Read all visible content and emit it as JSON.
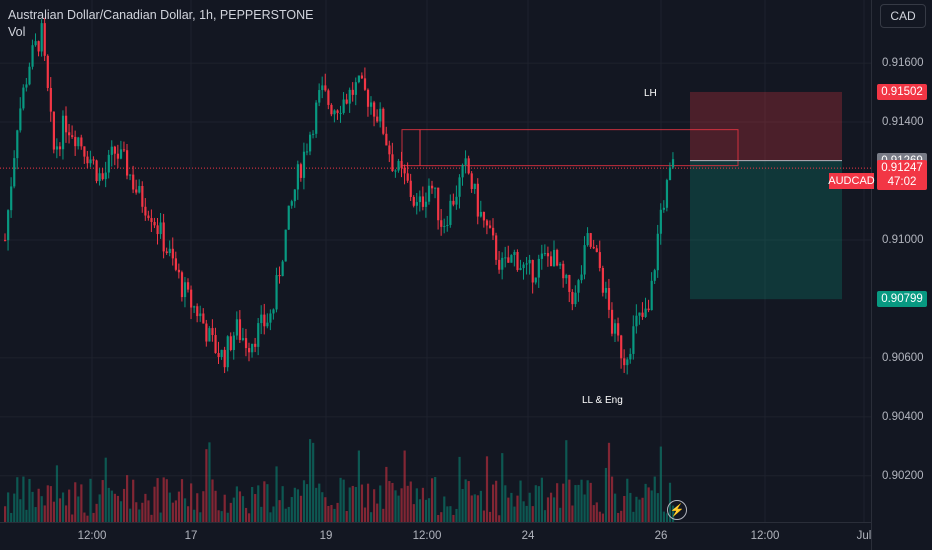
{
  "header": {
    "title": "Australian Dollar/Canadian Dollar, 1h, PEPPERSTONE",
    "volume_label": "Vol"
  },
  "currency_button": "CAD",
  "y_axis": {
    "ticks": [
      "0.91600",
      "0.91400",
      "0.91000",
      "0.90600",
      "0.90400",
      "0.90200"
    ],
    "tick_values": [
      0.916,
      0.914,
      0.91,
      0.906,
      0.904,
      0.902
    ],
    "price_tags": {
      "stop_loss": "0.91502",
      "entry": "0.91269",
      "last_price": "0.91247",
      "countdown": "47:02",
      "take_profit": "0.90799"
    },
    "symbol_tag": "AUDCAD"
  },
  "x_axis": {
    "ticks": [
      "12:00",
      "17",
      "19",
      "12:00",
      "24",
      "26",
      "12:00",
      "Jul"
    ]
  },
  "annotations": {
    "high_label": "LH",
    "low_label": "LL & Eng"
  },
  "colors": {
    "background": "#131722",
    "bull": "#089981",
    "bear": "#f23645",
    "stop_zone": "#f23645",
    "target_zone": "#089981",
    "entry_tag": "#787b86",
    "axis_text": "#b2b5be"
  },
  "chart_data": {
    "type": "candlestick",
    "symbol": "AUDCAD",
    "interval": "1h",
    "y_range": [
      0.9005,
      0.9178
    ],
    "close_path": [
      0.91,
      0.914,
      0.916,
      0.917,
      0.913,
      0.914,
      0.9135,
      0.9128,
      0.912,
      0.913,
      0.9125,
      0.9115,
      0.911,
      0.91,
      0.909,
      0.908,
      0.9075,
      0.9065,
      0.906,
      0.907,
      0.9065,
      0.907,
      0.9075,
      0.91,
      0.912,
      0.9135,
      0.915,
      0.9145,
      0.9148,
      0.9152,
      0.9148,
      0.914,
      0.9125,
      0.912,
      0.911,
      0.912,
      0.9105,
      0.9115,
      0.9125,
      0.911,
      0.91,
      0.909,
      0.9095,
      0.9088,
      0.9092,
      0.9095,
      0.9085,
      0.908,
      0.91,
      0.909,
      0.907,
      0.906,
      0.9072,
      0.9075,
      0.911,
      0.9125
    ],
    "trade_setup": {
      "stop_loss": 0.91502,
      "entry": 0.91269,
      "take_profit": 0.90799,
      "last_price": 0.91247
    }
  }
}
